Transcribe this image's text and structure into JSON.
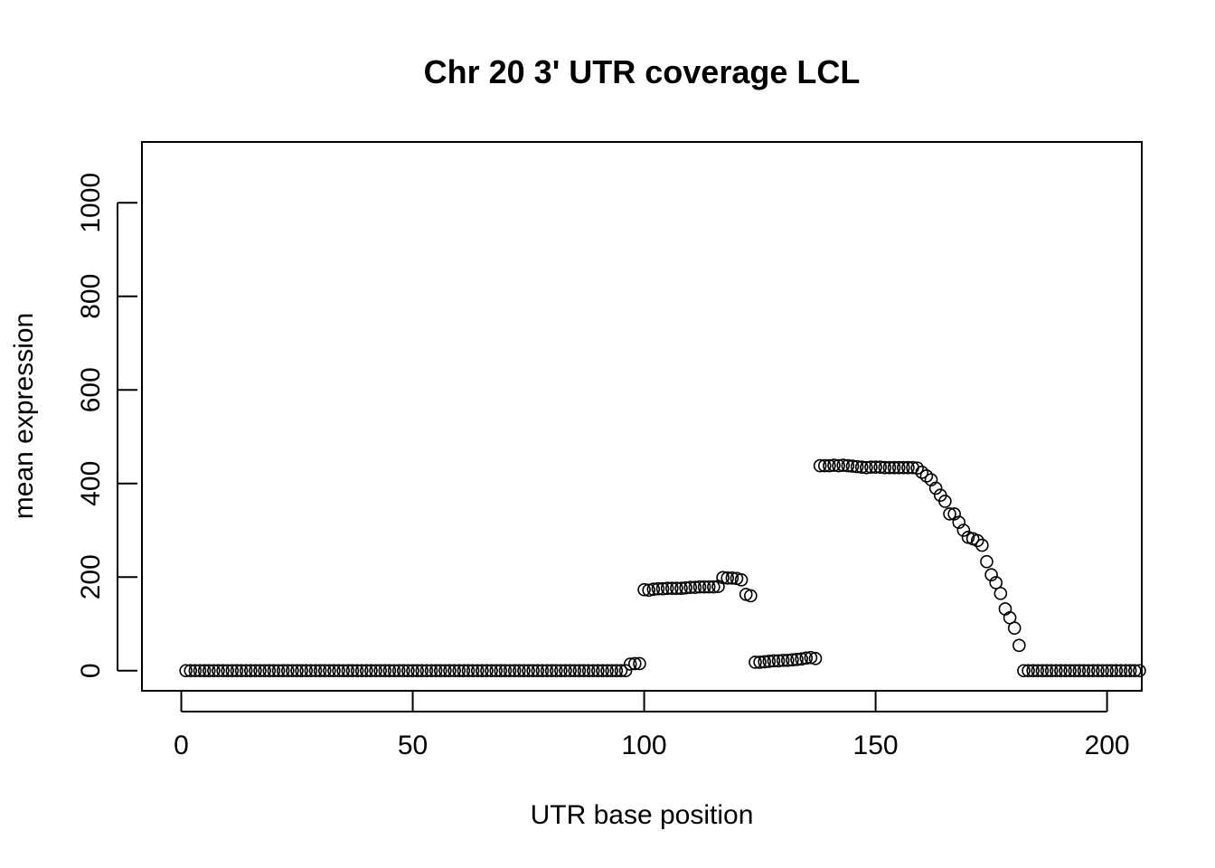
{
  "chart_data": {
    "type": "scatter",
    "title": "Chr 20 3' UTR coverage LCL",
    "xlabel": "UTR base position",
    "ylabel": "mean expression",
    "xlim": [
      -8.5,
      207.5
    ],
    "ylim": [
      -43,
      1130
    ],
    "xticks": [
      0,
      50,
      100,
      150,
      200
    ],
    "yticks": [
      0,
      200,
      400,
      600,
      800,
      1000
    ],
    "grid": false,
    "legend": "none",
    "marker": "open-circle",
    "x": [
      1,
      2,
      3,
      4,
      5,
      6,
      7,
      8,
      9,
      10,
      11,
      12,
      13,
      14,
      15,
      16,
      17,
      18,
      19,
      20,
      21,
      22,
      23,
      24,
      25,
      26,
      27,
      28,
      29,
      30,
      31,
      32,
      33,
      34,
      35,
      36,
      37,
      38,
      39,
      40,
      41,
      42,
      43,
      44,
      45,
      46,
      47,
      48,
      49,
      50,
      51,
      52,
      53,
      54,
      55,
      56,
      57,
      58,
      59,
      60,
      61,
      62,
      63,
      64,
      65,
      66,
      67,
      68,
      69,
      70,
      71,
      72,
      73,
      74,
      75,
      76,
      77,
      78,
      79,
      80,
      81,
      82,
      83,
      84,
      85,
      86,
      87,
      88,
      89,
      90,
      91,
      92,
      93,
      94,
      95,
      96,
      97,
      98,
      99,
      100,
      101,
      102,
      103,
      104,
      105,
      106,
      107,
      108,
      109,
      110,
      111,
      112,
      113,
      114,
      115,
      116,
      117,
      118,
      119,
      120,
      121,
      122,
      123,
      124,
      125,
      126,
      127,
      128,
      129,
      130,
      131,
      132,
      133,
      134,
      135,
      136,
      137,
      138,
      139,
      140,
      141,
      142,
      143,
      144,
      145,
      146,
      147,
      148,
      149,
      150,
      151,
      152,
      153,
      154,
      155,
      156,
      157,
      158,
      159,
      160,
      161,
      162,
      163,
      164,
      165,
      166,
      167,
      168,
      169,
      170,
      171,
      172,
      173,
      174,
      175,
      176,
      177,
      178,
      179,
      180,
      181,
      182,
      183,
      184,
      185,
      186,
      187,
      188,
      189,
      190,
      191,
      192,
      193,
      194,
      195,
      196,
      197,
      198,
      199,
      200,
      201,
      202,
      203,
      204,
      205,
      206,
      207
    ],
    "y": [
      0,
      0,
      0,
      0,
      0,
      0,
      0,
      0,
      0,
      0,
      0,
      0,
      0,
      0,
      0,
      0,
      0,
      0,
      0,
      0,
      0,
      0,
      0,
      0,
      0,
      0,
      0,
      0,
      0,
      0,
      0,
      0,
      0,
      0,
      0,
      0,
      0,
      0,
      0,
      0,
      0,
      0,
      0,
      0,
      0,
      0,
      0,
      0,
      0,
      0,
      0,
      0,
      0,
      0,
      0,
      0,
      0,
      0,
      0,
      0,
      0,
      0,
      0,
      0,
      0,
      0,
      0,
      0,
      0,
      0,
      0,
      0,
      0,
      0,
      0,
      0,
      0,
      0,
      0,
      0,
      0,
      0,
      0,
      0,
      0,
      0,
      0,
      0,
      0,
      0,
      0,
      0,
      0,
      0,
      0,
      0,
      14,
      15,
      15,
      173,
      172,
      174,
      175,
      175,
      176,
      176,
      176,
      176,
      177,
      178,
      178,
      179,
      179,
      179,
      179,
      180,
      199,
      198,
      198,
      197,
      194,
      163,
      160,
      18,
      18,
      19,
      20,
      21,
      21,
      22,
      22,
      23,
      24,
      25,
      27,
      28,
      26,
      438,
      438,
      438,
      439,
      438,
      439,
      438,
      437,
      436,
      435,
      434,
      435,
      435,
      435,
      434,
      434,
      434,
      434,
      434,
      434,
      434,
      433,
      424,
      416,
      408,
      390,
      375,
      362,
      335,
      335,
      317,
      300,
      285,
      282,
      278,
      268,
      233,
      205,
      188,
      165,
      132,
      113,
      91,
      54,
      0,
      0,
      0,
      0,
      0,
      0,
      0,
      0,
      0,
      0,
      0,
      0,
      0,
      0,
      0,
      0,
      0,
      0,
      0,
      0,
      0,
      0,
      0,
      0,
      0,
      0
    ]
  }
}
